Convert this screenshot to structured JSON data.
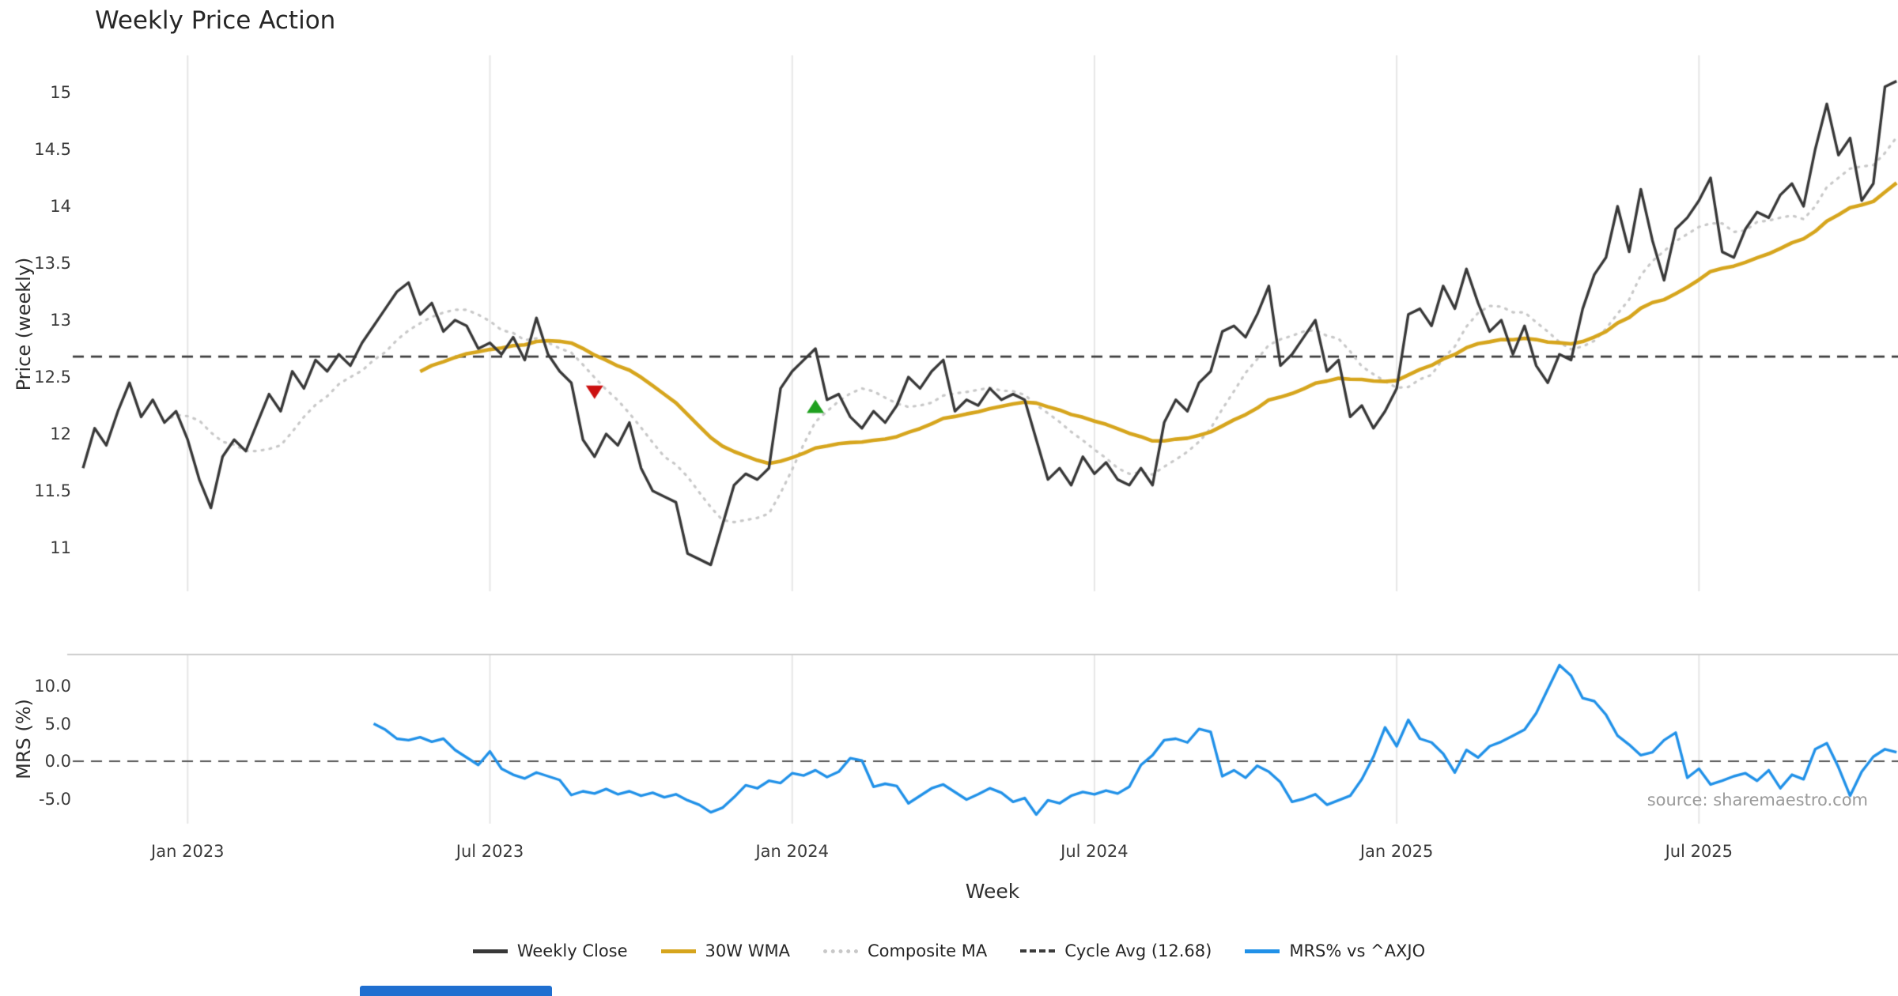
{
  "header": {
    "title": "Weekly Price Action"
  },
  "axes": {
    "price_ylabel": "Price (weekly)",
    "mrs_ylabel": "MRS (%)",
    "xlabel": "Week"
  },
  "source_text": "source: sharemaestro.com",
  "colors": {
    "close": "#383838",
    "wma": "#d6a51d",
    "composite": "#c8c8c8",
    "cycle_avg": "#3c3c3c",
    "mrs": "#2191e8",
    "sell_marker": "#cc1111",
    "buy_marker": "#1fa01f",
    "grid": "#e6e6e6",
    "panel_border": "#cccccc",
    "zero_line": "#555555",
    "bottom_bar": "#1f6fd0"
  },
  "legend": {
    "items": [
      {
        "label": "Weekly Close",
        "style": "solid",
        "color": "#383838"
      },
      {
        "label": "30W WMA",
        "style": "solid",
        "color": "#d6a51d"
      },
      {
        "label": "Composite MA",
        "style": "dotted",
        "color": "#c8c8c8"
      },
      {
        "label": "Cycle Avg (12.68)",
        "style": "dashed",
        "color": "#3c3c3c"
      },
      {
        "label": "MRS% vs ^AXJO",
        "style": "solid",
        "color": "#2191e8"
      }
    ]
  },
  "chart_data": [
    {
      "type": "line",
      "panel": "price",
      "title": "Weekly Price Action",
      "ylabel": "Price (weekly)",
      "xlabel": "Week",
      "ylim": [
        10.6,
        15.35
      ],
      "grid": "vertical-only",
      "y_ticks": [
        {
          "v": 15,
          "label": "15"
        },
        {
          "v": 14.5,
          "label": "14.5"
        },
        {
          "v": 14,
          "label": "14"
        },
        {
          "v": 13.5,
          "label": "13.5"
        },
        {
          "v": 13,
          "label": "13"
        },
        {
          "v": 12.5,
          "label": "12.5"
        },
        {
          "v": 12,
          "label": "12"
        },
        {
          "v": 11.5,
          "label": "11.5"
        },
        {
          "v": 11,
          "label": "11"
        }
      ],
      "x_ticks": [
        {
          "week": 9,
          "label": "Jan 2023"
        },
        {
          "week": 35,
          "label": "Jul 2023"
        },
        {
          "week": 61,
          "label": "Jan 2024"
        },
        {
          "week": 87,
          "label": "Jul 2024"
        },
        {
          "week": 113,
          "label": "Jan 2025"
        },
        {
          "week": 139,
          "label": "Jul 2025"
        }
      ],
      "cycle_avg": 12.68,
      "series": [
        {
          "name": "Weekly Close",
          "style": "solid",
          "values": [
            11.7,
            12.05,
            11.9,
            12.2,
            12.45,
            12.15,
            12.3,
            12.1,
            12.2,
            11.95,
            11.6,
            11.35,
            11.8,
            11.95,
            11.85,
            12.1,
            12.35,
            12.2,
            12.55,
            12.4,
            12.65,
            12.55,
            12.7,
            12.6,
            12.8,
            12.95,
            13.1,
            13.25,
            13.33,
            13.05,
            13.15,
            12.9,
            13.0,
            12.95,
            12.75,
            12.8,
            12.7,
            12.85,
            12.65,
            13.02,
            12.7,
            12.55,
            12.45,
            11.95,
            11.8,
            12.0,
            11.9,
            12.1,
            11.7,
            11.5,
            11.45,
            11.4,
            10.95,
            10.9,
            10.85,
            11.2,
            11.55,
            11.65,
            11.6,
            11.7,
            12.4,
            12.55,
            12.65,
            12.75,
            12.3,
            12.35,
            12.15,
            12.05,
            12.2,
            12.1,
            12.25,
            12.5,
            12.4,
            12.55,
            12.65,
            12.2,
            12.3,
            12.25,
            12.4,
            12.3,
            12.35,
            12.3,
            11.95,
            11.6,
            11.7,
            11.55,
            11.8,
            11.65,
            11.75,
            11.6,
            11.55,
            11.7,
            11.55,
            12.1,
            12.3,
            12.2,
            12.45,
            12.55,
            12.9,
            12.95,
            12.85,
            13.05,
            13.3,
            12.6,
            12.7,
            12.85,
            13.0,
            12.55,
            12.65,
            12.15,
            12.25,
            12.05,
            12.2,
            12.4,
            13.05,
            13.1,
            12.95,
            13.3,
            13.1,
            13.45,
            13.15,
            12.9,
            13.0,
            12.7,
            12.95,
            12.6,
            12.45,
            12.7,
            12.65,
            13.1,
            13.4,
            13.55,
            14.0,
            13.6,
            14.15,
            13.7,
            13.35,
            13.8,
            13.9,
            14.05,
            14.25,
            13.6,
            13.55,
            13.8,
            13.95,
            13.9,
            14.1,
            14.2,
            14.0,
            14.5,
            14.9,
            14.45,
            14.6,
            14.05,
            14.2,
            15.05,
            15.1
          ]
        },
        {
          "name": "30W WMA",
          "style": "solid",
          "derived_from": "Weekly Close",
          "method": "weighted_ma",
          "window": 30
        },
        {
          "name": "Composite MA",
          "style": "dotted",
          "derived_from": "Weekly Close",
          "method": "sma",
          "window": 8
        },
        {
          "name": "Cycle Avg (12.68)",
          "style": "dashed",
          "constant": 12.68
        }
      ],
      "markers": [
        {
          "shape": "triangle-down",
          "signal": "sell",
          "week": 44,
          "price": 12.37
        },
        {
          "shape": "triangle-up",
          "signal": "buy",
          "week": 63,
          "price": 12.24
        }
      ]
    },
    {
      "type": "line",
      "panel": "mrs",
      "ylabel": "MRS (%)",
      "xlabel": "Week",
      "ylim": [
        -8.5,
        13.5
      ],
      "zero_line": 0,
      "y_ticks": [
        {
          "v": 10,
          "label": "10.0"
        },
        {
          "v": 5,
          "label": "5.0"
        },
        {
          "v": 0,
          "label": "0.0"
        },
        {
          "v": -5,
          "label": "-5.0"
        }
      ],
      "series": [
        {
          "name": "MRS% vs ^AXJO",
          "style": "solid",
          "start_week": 25,
          "values": [
            5.0,
            4.2,
            3.0,
            2.8,
            3.2,
            2.6,
            3.0,
            1.5,
            0.5,
            -0.5,
            1.3,
            -1.0,
            -1.8,
            -2.3,
            -1.5,
            -2.0,
            -2.5,
            -4.5,
            -4.0,
            -4.3,
            -3.7,
            -4.4,
            -4.0,
            -4.6,
            -4.2,
            -4.8,
            -4.4,
            -5.2,
            -5.8,
            -6.8,
            -6.2,
            -4.8,
            -3.2,
            -3.6,
            -2.6,
            -2.9,
            -1.6,
            -1.9,
            -1.2,
            -2.1,
            -1.4,
            0.4,
            0.1,
            -3.4,
            -3.0,
            -3.3,
            -5.6,
            -4.6,
            -3.6,
            -3.1,
            -4.1,
            -5.1,
            -4.4,
            -3.6,
            -4.2,
            -5.4,
            -4.9,
            -7.1,
            -5.2,
            -5.6,
            -4.6,
            -4.1,
            -4.4,
            -3.9,
            -4.3,
            -3.4,
            -0.5,
            0.8,
            2.8,
            3.0,
            2.5,
            4.3,
            3.9,
            -2.0,
            -1.2,
            -2.2,
            -0.6,
            -1.4,
            -2.8,
            -5.4,
            -5.0,
            -4.4,
            -5.8,
            -5.2,
            -4.6,
            -2.4,
            0.6,
            4.5,
            2.0,
            5.5,
            3.0,
            2.5,
            1.0,
            -1.5,
            1.5,
            0.5,
            2.0,
            2.6,
            3.4,
            4.2,
            6.4,
            9.6,
            12.8,
            11.4,
            8.4,
            8.0,
            6.2,
            3.4,
            2.2,
            0.8,
            1.2,
            2.8,
            3.8,
            -2.2,
            -1.0,
            -3.1,
            -2.6,
            -2.0,
            -1.6,
            -2.6,
            -1.2,
            -3.6,
            -1.8,
            -2.4,
            1.6,
            2.4,
            -0.8,
            -4.6,
            -1.4,
            0.6,
            1.6,
            1.2
          ]
        }
      ]
    }
  ]
}
